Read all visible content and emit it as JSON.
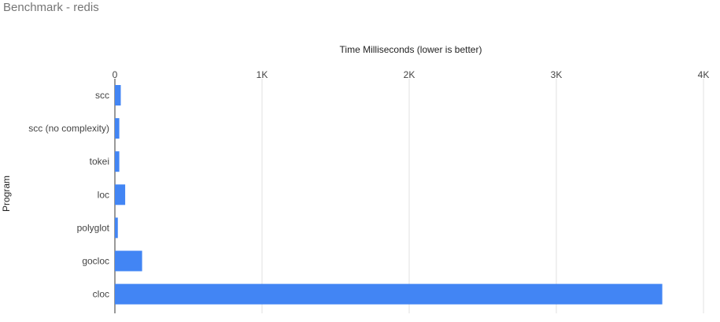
{
  "chart_data": {
    "type": "bar",
    "orientation": "horizontal",
    "title": "Benchmark - redis",
    "xlabel": "Time Milliseconds (lower is better)",
    "ylabel": "Program",
    "xlim": [
      0,
      4000
    ],
    "x_ticks": [
      0,
      1000,
      2000,
      3000,
      4000
    ],
    "x_tick_labels": [
      "0",
      "1K",
      "2K",
      "3K",
      "4K"
    ],
    "x_axis_position": "top",
    "grid": true,
    "categories": [
      "scc",
      "scc (no complexity)",
      "tokei",
      "loc",
      "polyglot",
      "gocloc",
      "cloc"
    ],
    "values": [
      40,
      30,
      30,
      70,
      20,
      185,
      3720
    ],
    "bar_color": "#4285f4"
  }
}
